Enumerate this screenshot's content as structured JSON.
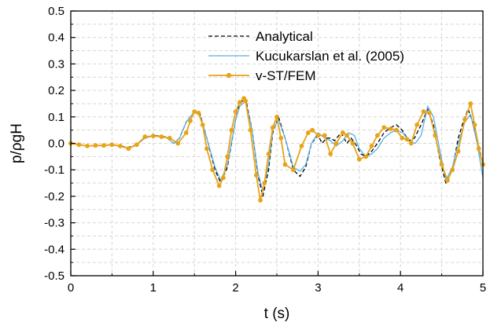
{
  "chart_data": {
    "type": "line",
    "xlabel": "t (s)",
    "ylabel": "p/ρgH",
    "xlim": [
      0,
      5
    ],
    "ylim": [
      -0.5,
      0.5
    ],
    "xticks": [
      0,
      1,
      2,
      3,
      4,
      5
    ],
    "xtick_labels": [
      "0",
      "1",
      "2",
      "3",
      "4",
      "5"
    ],
    "yticks": [
      -0.5,
      -0.4,
      -0.3,
      -0.2,
      -0.1,
      0.0,
      0.1,
      0.2,
      0.3,
      0.4,
      0.5
    ],
    "ytick_labels": [
      "-0.5",
      "-0.4",
      "-0.3",
      "-0.2",
      "-0.1",
      "0.0",
      "0.1",
      "0.2",
      "0.3",
      "0.4",
      "0.5"
    ],
    "grid": true,
    "legend_position": "top-right",
    "series": [
      {
        "name": "Analytical",
        "style": "dashed",
        "color": "#000000",
        "x": [
          0,
          0.2,
          0.5,
          0.7,
          0.8,
          0.9,
          1.0,
          1.15,
          1.25,
          1.32,
          1.4,
          1.5,
          1.57,
          1.65,
          1.75,
          1.82,
          1.9,
          2.0,
          2.05,
          2.12,
          2.2,
          2.27,
          2.33,
          2.4,
          2.45,
          2.52,
          2.6,
          2.7,
          2.78,
          2.85,
          2.92,
          3.0,
          3.05,
          3.1,
          3.15,
          3.2,
          3.28,
          3.35,
          3.4,
          3.45,
          3.52,
          3.58,
          3.65,
          3.72,
          3.8,
          3.88,
          3.95,
          4.02,
          4.1,
          4.17,
          4.25,
          4.33,
          4.4,
          4.47,
          4.55,
          4.63,
          4.7,
          4.75,
          4.82,
          4.9,
          5.0
        ],
        "y": [
          0,
          -0.01,
          -0.005,
          -0.015,
          -0.005,
          0.02,
          0.03,
          0.025,
          0.0,
          0.02,
          0.08,
          0.12,
          0.11,
          0.02,
          -0.1,
          -0.15,
          -0.09,
          0.09,
          0.15,
          0.17,
          0.05,
          -0.12,
          -0.2,
          -0.1,
          0.04,
          0.1,
          0.02,
          -0.1,
          -0.125,
          -0.09,
          0.0,
          0.03,
          0.0,
          0.02,
          0.02,
          0.01,
          0.04,
          0.0,
          0.02,
          0.0,
          -0.04,
          -0.05,
          -0.03,
          0.0,
          0.04,
          0.06,
          0.07,
          0.05,
          0.01,
          0.02,
          0.07,
          0.13,
          0.07,
          -0.05,
          -0.15,
          -0.1,
          0.02,
          0.07,
          0.13,
          0.06,
          -0.08
        ]
      },
      {
        "name": "Kucukarslan et al. (2005)",
        "style": "solid",
        "color": "#5aaee4",
        "x": [
          0,
          0.2,
          0.5,
          0.7,
          0.8,
          0.9,
          1.0,
          1.15,
          1.25,
          1.32,
          1.4,
          1.5,
          1.57,
          1.65,
          1.75,
          1.82,
          1.9,
          2.0,
          2.05,
          2.12,
          2.2,
          2.27,
          2.33,
          2.4,
          2.45,
          2.52,
          2.6,
          2.7,
          2.78,
          2.85,
          2.92,
          3.0,
          3.08,
          3.15,
          3.22,
          3.3,
          3.37,
          3.44,
          3.5,
          3.58,
          3.65,
          3.72,
          3.8,
          3.88,
          3.95,
          4.03,
          4.1,
          4.18,
          4.25,
          4.33,
          4.4,
          4.48,
          4.55,
          4.63,
          4.7,
          4.78,
          4.85,
          4.93,
          5.0
        ],
        "y": [
          0,
          -0.01,
          -0.005,
          -0.018,
          -0.005,
          0.02,
          0.028,
          0.025,
          0.0,
          0.02,
          0.08,
          0.12,
          0.105,
          0.02,
          -0.09,
          -0.14,
          -0.08,
          0.09,
          0.14,
          0.16,
          0.05,
          -0.11,
          -0.18,
          -0.08,
          0.05,
          0.09,
          0.02,
          -0.09,
          -0.105,
          -0.08,
          0.0,
          0.04,
          0.02,
          0.01,
          -0.01,
          0.01,
          0.04,
          0.03,
          -0.02,
          -0.05,
          -0.04,
          -0.02,
          0.02,
          0.04,
          0.05,
          0.04,
          0.01,
          0.0,
          0.03,
          0.14,
          0.1,
          -0.03,
          -0.14,
          -0.09,
          0.0,
          0.08,
          0.11,
          0.0,
          -0.13
        ]
      },
      {
        "name": "v-ST/FEM",
        "style": "solid-marker",
        "color": "#e8a317",
        "x": [
          0,
          0.1,
          0.2,
          0.3,
          0.4,
          0.5,
          0.6,
          0.7,
          0.8,
          0.9,
          1.0,
          1.1,
          1.2,
          1.3,
          1.4,
          1.45,
          1.5,
          1.55,
          1.6,
          1.65,
          1.72,
          1.8,
          1.85,
          1.9,
          1.95,
          2.0,
          2.05,
          2.1,
          2.12,
          2.18,
          2.25,
          2.3,
          2.35,
          2.4,
          2.45,
          2.5,
          2.55,
          2.6,
          2.7,
          2.8,
          2.88,
          2.93,
          3.0,
          3.08,
          3.15,
          3.22,
          3.3,
          3.35,
          3.42,
          3.5,
          3.58,
          3.65,
          3.72,
          3.8,
          3.88,
          3.95,
          4.02,
          4.08,
          4.13,
          4.2,
          4.28,
          4.35,
          4.42,
          4.5,
          4.57,
          4.63,
          4.7,
          4.78,
          4.85,
          4.9,
          4.95,
          5.0
        ],
        "y": [
          0,
          -0.005,
          -0.01,
          -0.008,
          -0.008,
          -0.005,
          -0.01,
          -0.02,
          -0.005,
          0.025,
          0.028,
          0.025,
          0.02,
          0.0,
          0.04,
          0.085,
          0.12,
          0.115,
          0.07,
          -0.02,
          -0.1,
          -0.16,
          -0.13,
          -0.05,
          0.05,
          0.12,
          0.155,
          0.17,
          0.16,
          0.05,
          -0.12,
          -0.215,
          -0.15,
          -0.04,
          0.06,
          0.1,
          0.02,
          -0.08,
          -0.1,
          -0.01,
          0.04,
          0.05,
          0.03,
          0.03,
          -0.04,
          0.0,
          0.04,
          0.03,
          0.0,
          -0.06,
          -0.05,
          -0.01,
          0.03,
          0.06,
          0.055,
          0.05,
          0.02,
          0.015,
          0.0,
          0.07,
          0.12,
          0.115,
          0.03,
          -0.08,
          -0.14,
          -0.1,
          -0.03,
          0.09,
          0.15,
          0.07,
          -0.02,
          -0.08
        ]
      }
    ]
  }
}
